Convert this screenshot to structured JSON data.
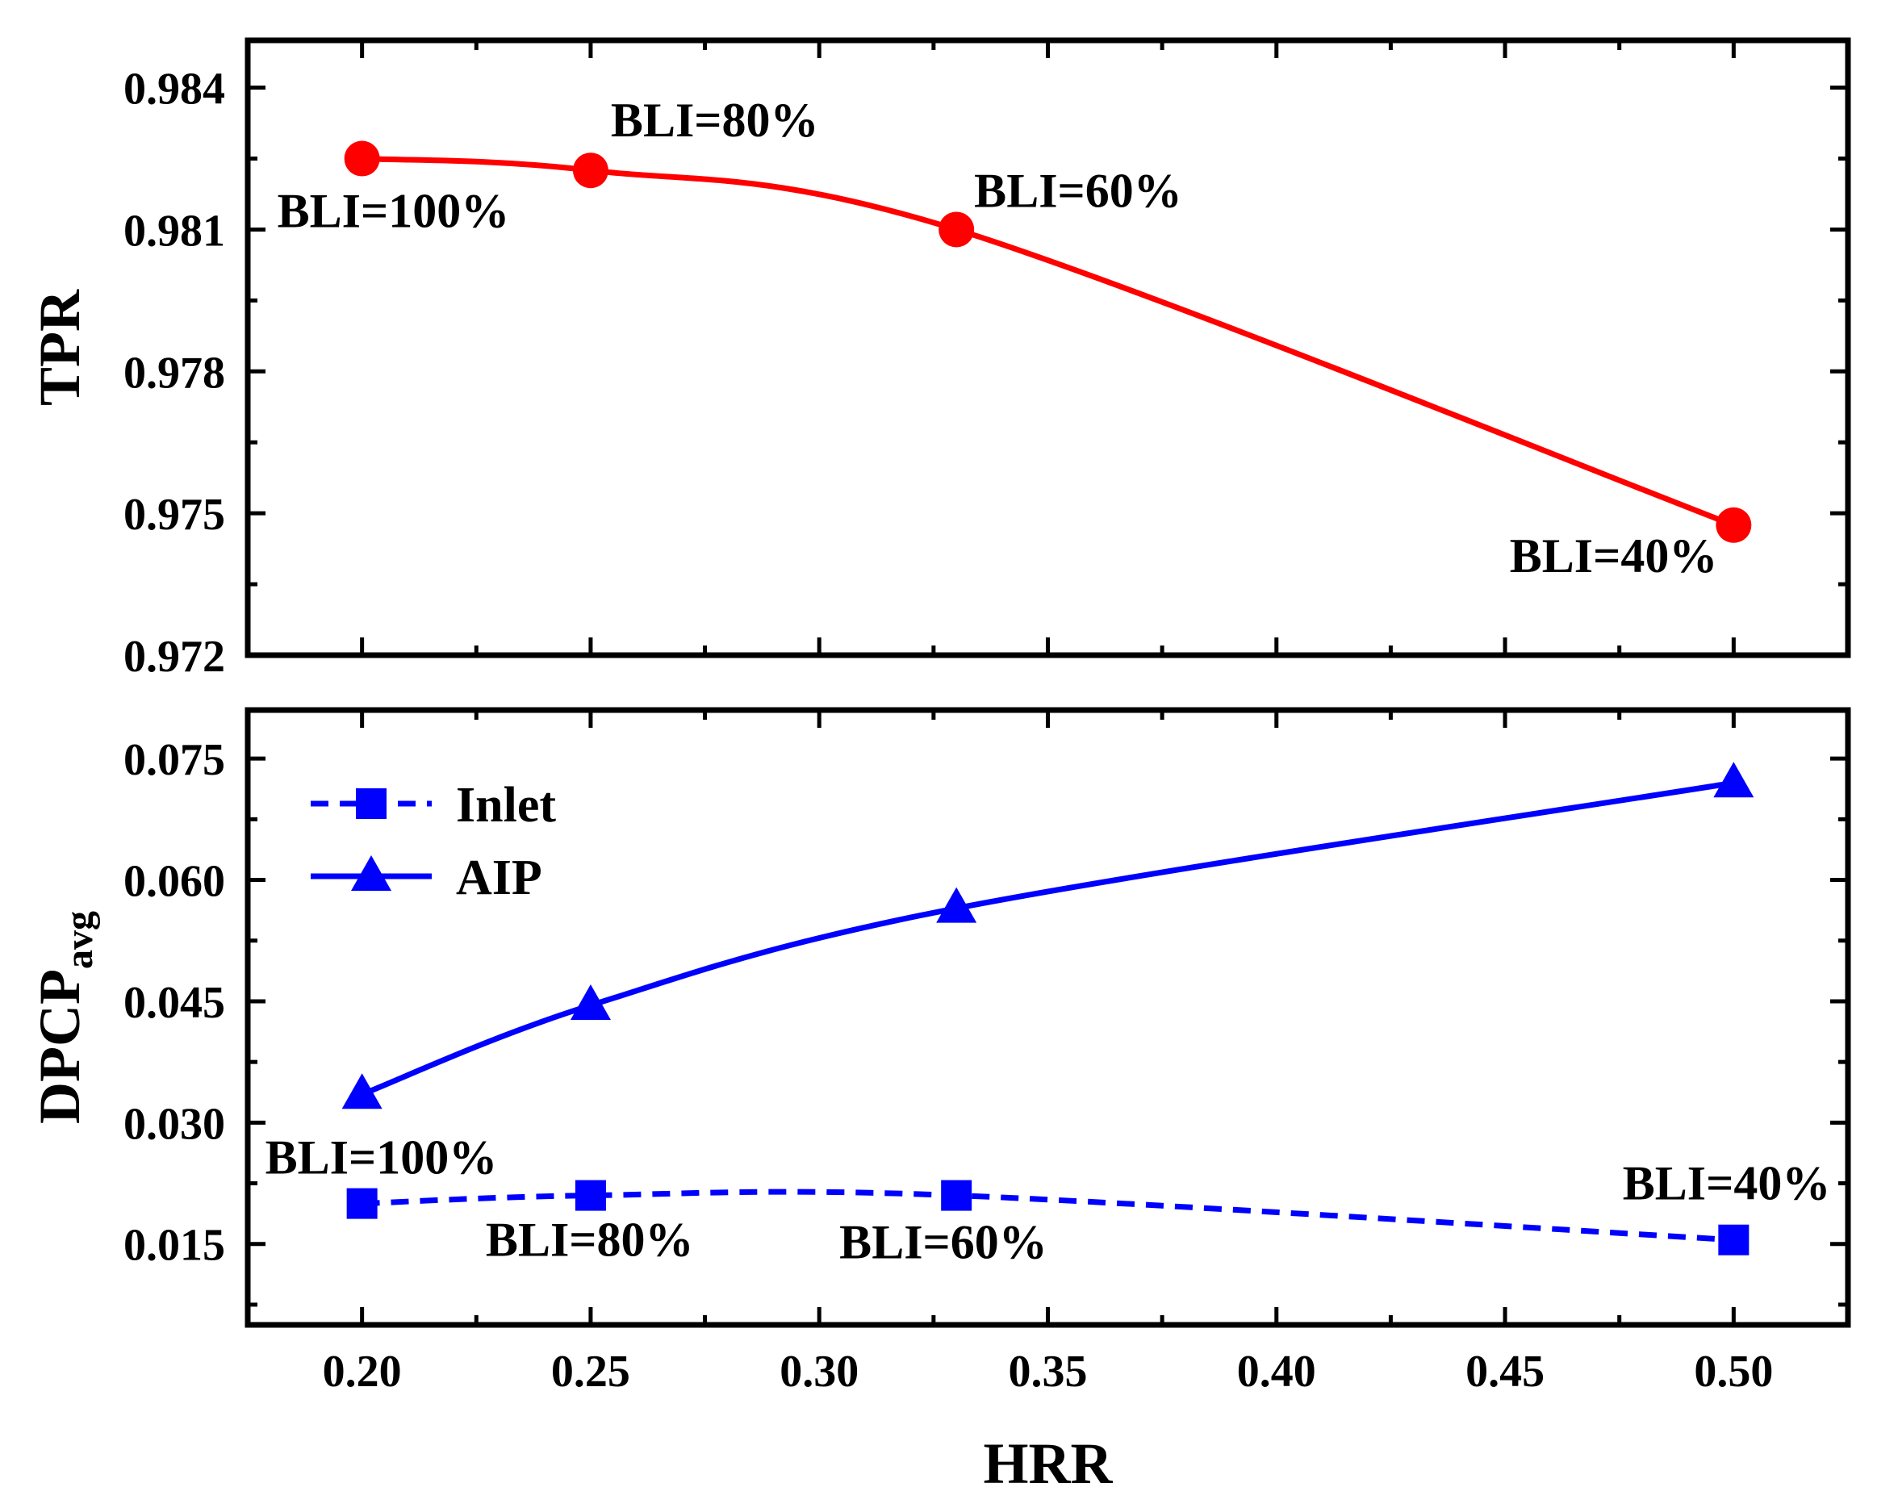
{
  "colors": {
    "tpr": "#ff0000",
    "dpcp": "#0000ff",
    "axis": "#000000"
  },
  "chart_data": [
    {
      "type": "line",
      "panel": "top",
      "xlabel": "",
      "ylabel": "TPR",
      "xlim": [
        0.175,
        0.525
      ],
      "ylim": [
        0.972,
        0.985
      ],
      "yticks": [
        0.972,
        0.975,
        0.978,
        0.981,
        0.984
      ],
      "ytick_labels": [
        "0.972",
        "0.975",
        "0.978",
        "0.981",
        "0.984"
      ],
      "series": [
        {
          "name": "TPR",
          "color": "#ff0000",
          "marker": "circle",
          "x": [
            0.2,
            0.25,
            0.33,
            0.5
          ],
          "y": [
            0.9825,
            0.98225,
            0.981,
            0.97475
          ],
          "point_labels": [
            "BLI=100%",
            "BLI=80%",
            "BLI=60%",
            "BLI=40%"
          ]
        }
      ]
    },
    {
      "type": "line",
      "panel": "bottom",
      "xlabel": "HRR",
      "ylabel": "DPCP",
      "ylabel_sub": "avg",
      "xlim": [
        0.175,
        0.525
      ],
      "ylim": [
        0.005,
        0.081
      ],
      "xticks": [
        0.2,
        0.25,
        0.3,
        0.35,
        0.4,
        0.45,
        0.5
      ],
      "xtick_labels": [
        "0.20",
        "0.25",
        "0.30",
        "0.35",
        "0.40",
        "0.45",
        "0.50"
      ],
      "yticks": [
        0.015,
        0.03,
        0.045,
        0.06,
        0.075
      ],
      "ytick_labels": [
        "0.015",
        "0.030",
        "0.045",
        "0.060",
        "0.075"
      ],
      "legend": {
        "placement": "top-left",
        "entries": [
          "Inlet",
          "AIP"
        ]
      },
      "point_labels": [
        "BLI=100%",
        "BLI=80%",
        "BLI=60%",
        "BLI=40%"
      ],
      "series": [
        {
          "name": "Inlet",
          "color": "#0000ff",
          "marker": "square",
          "style": "dashed",
          "x": [
            0.2,
            0.25,
            0.33,
            0.5
          ],
          "y": [
            0.02,
            0.021,
            0.021,
            0.0155
          ]
        },
        {
          "name": "AIP",
          "color": "#0000ff",
          "marker": "triangle",
          "style": "solid",
          "x": [
            0.2,
            0.25,
            0.33,
            0.5
          ],
          "y": [
            0.0335,
            0.0445,
            0.0565,
            0.072
          ]
        }
      ]
    }
  ]
}
